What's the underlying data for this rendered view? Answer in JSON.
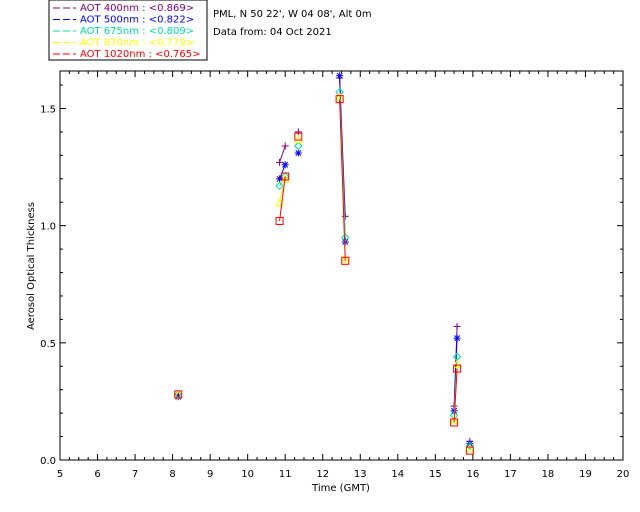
{
  "chart_data": {
    "type": "line",
    "xlabel": "Time (GMT)",
    "ylabel": "Aerosol Optical Thickness",
    "xlim": [
      5,
      20
    ],
    "ylim": [
      0,
      1.66
    ],
    "xticks": [
      "5",
      "6",
      "7",
      "8",
      "9",
      "10",
      "11",
      "12",
      "13",
      "14",
      "15",
      "16",
      "17",
      "18",
      "19",
      "20"
    ],
    "yticks": [
      "0.0",
      "0.5",
      "1.0",
      "1.5"
    ],
    "info": [
      "PML, N 50 22', W 04 08', Alt 0m",
      "Data from: 04 Oct 2021"
    ],
    "legend_position": "top-left-outside",
    "series": [
      {
        "name": "AOT  400nm : <0.869>",
        "color": "#800080",
        "marker": "plus",
        "segments": [
          [
            [
              8.15,
              0.28
            ]
          ],
          [
            [
              10.85,
              1.27
            ],
            [
              11.0,
              1.34
            ]
          ],
          [
            [
              11.35,
              1.4
            ]
          ],
          [
            [
              12.45,
              1.63
            ],
            [
              12.6,
              1.04
            ]
          ],
          [
            [
              15.5,
              0.23
            ],
            [
              15.58,
              0.57
            ]
          ],
          [
            [
              15.92,
              0.08
            ]
          ]
        ]
      },
      {
        "name": "AOT  500nm : <0.822>",
        "color": "#0000ff",
        "marker": "asterisk",
        "segments": [
          [
            [
              8.15,
              0.27
            ]
          ],
          [
            [
              10.85,
              1.2
            ],
            [
              11.0,
              1.26
            ]
          ],
          [
            [
              11.35,
              1.31
            ]
          ],
          [
            [
              12.45,
              1.64
            ],
            [
              12.6,
              0.93
            ]
          ],
          [
            [
              15.5,
              0.21
            ],
            [
              15.58,
              0.52
            ]
          ],
          [
            [
              15.92,
              0.07
            ]
          ]
        ]
      },
      {
        "name": "AOT  675nm : <0.809>",
        "color": "#00e0a0",
        "marker": "diamond",
        "segments": [
          [
            [
              8.15,
              0.28
            ]
          ],
          [
            [
              10.85,
              1.17
            ],
            [
              11.0,
              1.21
            ]
          ],
          [
            [
              11.35,
              1.34
            ]
          ],
          [
            [
              12.45,
              1.57
            ],
            [
              12.6,
              0.95
            ]
          ],
          [
            [
              15.5,
              0.19
            ],
            [
              15.58,
              0.44
            ]
          ],
          [
            [
              15.92,
              0.06
            ]
          ]
        ]
      },
      {
        "name": "AOT  870nm : <0.779>",
        "color": "#ffff00",
        "marker": "triangle",
        "segments": [
          [
            [
              8.15,
              0.28
            ]
          ],
          [
            [
              10.85,
              1.1
            ],
            [
              11.0,
              1.2
            ]
          ],
          [
            [
              11.35,
              1.37
            ]
          ],
          [
            [
              12.45,
              1.55
            ],
            [
              12.6,
              0.86
            ]
          ],
          [
            [
              15.5,
              0.17
            ],
            [
              15.58,
              0.41
            ]
          ],
          [
            [
              15.92,
              0.05
            ]
          ]
        ]
      },
      {
        "name": "AOT 1020nm : <0.765>",
        "color": "#ff0000",
        "marker": "square",
        "segments": [
          [
            [
              8.15,
              0.28
            ]
          ],
          [
            [
              10.85,
              1.02
            ],
            [
              11.0,
              1.21
            ]
          ],
          [
            [
              11.35,
              1.38
            ]
          ],
          [
            [
              12.45,
              1.54
            ],
            [
              12.6,
              0.85
            ]
          ],
          [
            [
              15.5,
              0.16
            ],
            [
              15.58,
              0.39
            ]
          ],
          [
            [
              15.92,
              0.04
            ]
          ]
        ]
      }
    ]
  }
}
